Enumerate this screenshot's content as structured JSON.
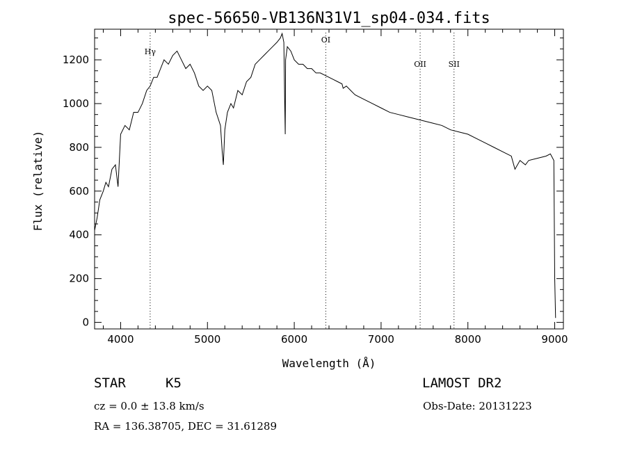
{
  "chart_data": {
    "type": "line",
    "title": "spec-56650-VB136N31V1_sp04-034.fits",
    "xlabel": "Wavelength (Å)",
    "ylabel": "Flux (relative)",
    "xlim": [
      3700,
      9100
    ],
    "ylim": [
      -30,
      1340
    ],
    "xticks": [
      4000,
      5000,
      6000,
      7000,
      8000,
      9000
    ],
    "yticks": [
      0,
      200,
      400,
      600,
      800,
      1000,
      1200
    ],
    "grid": false,
    "series": [
      {
        "x": [
          3700,
          3730,
          3760,
          3800,
          3830,
          3860,
          3900,
          3940,
          3970,
          4000,
          4050,
          4100,
          4150,
          4200,
          4250,
          4300,
          4340,
          4380,
          4420,
          4460,
          4500,
          4550,
          4600,
          4650,
          4700,
          4750,
          4800,
          4850,
          4900,
          4950,
          5000,
          5050,
          5100,
          5150,
          5170,
          5183,
          5200,
          5230,
          5270,
          5300,
          5350,
          5400,
          5450,
          5500,
          5550,
          5600,
          5650,
          5700,
          5750,
          5800,
          5840,
          5860,
          5880,
          5890,
          5896,
          5900,
          5920,
          5960,
          6000,
          6050,
          6100,
          6150,
          6200,
          6250,
          6300,
          6350,
          6400,
          6450,
          6500,
          6550,
          6563,
          6600,
          6650,
          6700,
          6800,
          6900,
          7000,
          7100,
          7200,
          7300,
          7400,
          7500,
          7600,
          7700,
          7800,
          7900,
          8000,
          8100,
          8200,
          8300,
          8400,
          8500,
          8542,
          8600,
          8662,
          8700,
          8800,
          8900,
          8950,
          8990,
          9000,
          9010
        ],
        "y": [
          420,
          480,
          560,
          600,
          640,
          620,
          700,
          720,
          620,
          860,
          900,
          880,
          960,
          960,
          1000,
          1060,
          1080,
          1120,
          1120,
          1160,
          1200,
          1180,
          1220,
          1240,
          1200,
          1160,
          1180,
          1140,
          1080,
          1060,
          1080,
          1060,
          960,
          900,
          780,
          720,
          880,
          960,
          1000,
          980,
          1060,
          1040,
          1100,
          1120,
          1180,
          1200,
          1220,
          1240,
          1260,
          1280,
          1300,
          1320,
          1280,
          1000,
          860,
          1200,
          1260,
          1240,
          1200,
          1180,
          1180,
          1160,
          1160,
          1140,
          1140,
          1130,
          1120,
          1110,
          1100,
          1090,
          1070,
          1080,
          1060,
          1040,
          1020,
          1000,
          980,
          960,
          950,
          940,
          930,
          920,
          910,
          900,
          880,
          870,
          860,
          840,
          820,
          800,
          780,
          760,
          700,
          740,
          720,
          740,
          750,
          760,
          770,
          740,
          200,
          20
        ]
      }
    ],
    "lines": [
      {
        "label": "Hγ",
        "x": 4340
      },
      {
        "label": "OI",
        "x": 6363
      },
      {
        "label": "OII",
        "x": 7450
      },
      {
        "label": "SII",
        "x": 7840
      }
    ]
  },
  "info": {
    "obj_class": "STAR",
    "subclass": "K5",
    "release": "LAMOST DR2",
    "cz": "cz = 0.0 ± 13.8 km/s",
    "obs_date": "Obs-Date: 20131223",
    "radec": "RA = 136.38705, DEC =  31.61289"
  }
}
